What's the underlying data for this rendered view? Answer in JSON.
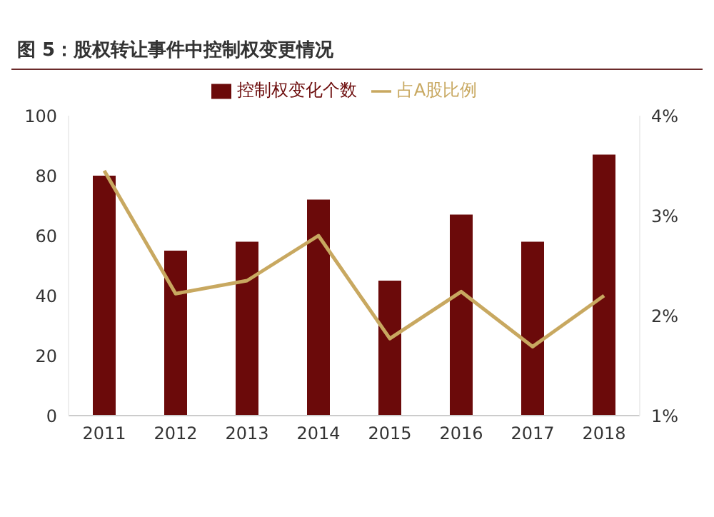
{
  "chart_data": {
    "type": "bar",
    "title": "图 5：股权转让事件中控制权变更情况",
    "categories": [
      "2011",
      "2012",
      "2013",
      "2014",
      "2015",
      "2016",
      "2017",
      "2018"
    ],
    "series": [
      {
        "name": "控制权变化个数",
        "color": "#6b0a0a",
        "values": [
          80,
          55,
          58,
          72,
          45,
          67,
          58,
          87
        ]
      },
      {
        "name": "占A股比例",
        "type": "line",
        "axis": "y2",
        "color": "#c8a860",
        "values": [
          3.45,
          2.22,
          2.35,
          2.8,
          1.77,
          2.24,
          1.69,
          2.2
        ]
      }
    ],
    "ylim": [
      0,
      100
    ],
    "yticks": [
      0,
      20,
      40,
      60,
      80,
      100
    ],
    "y2lim": [
      1,
      4
    ],
    "y2ticks": [
      {
        "value": 1,
        "label": "1%"
      },
      {
        "value": 2,
        "label": "2%"
      },
      {
        "value": 3,
        "label": "3%"
      },
      {
        "value": 4,
        "label": "4%"
      }
    ],
    "legend": "top",
    "grid": false,
    "marker": "none",
    "line_style": "solid"
  }
}
